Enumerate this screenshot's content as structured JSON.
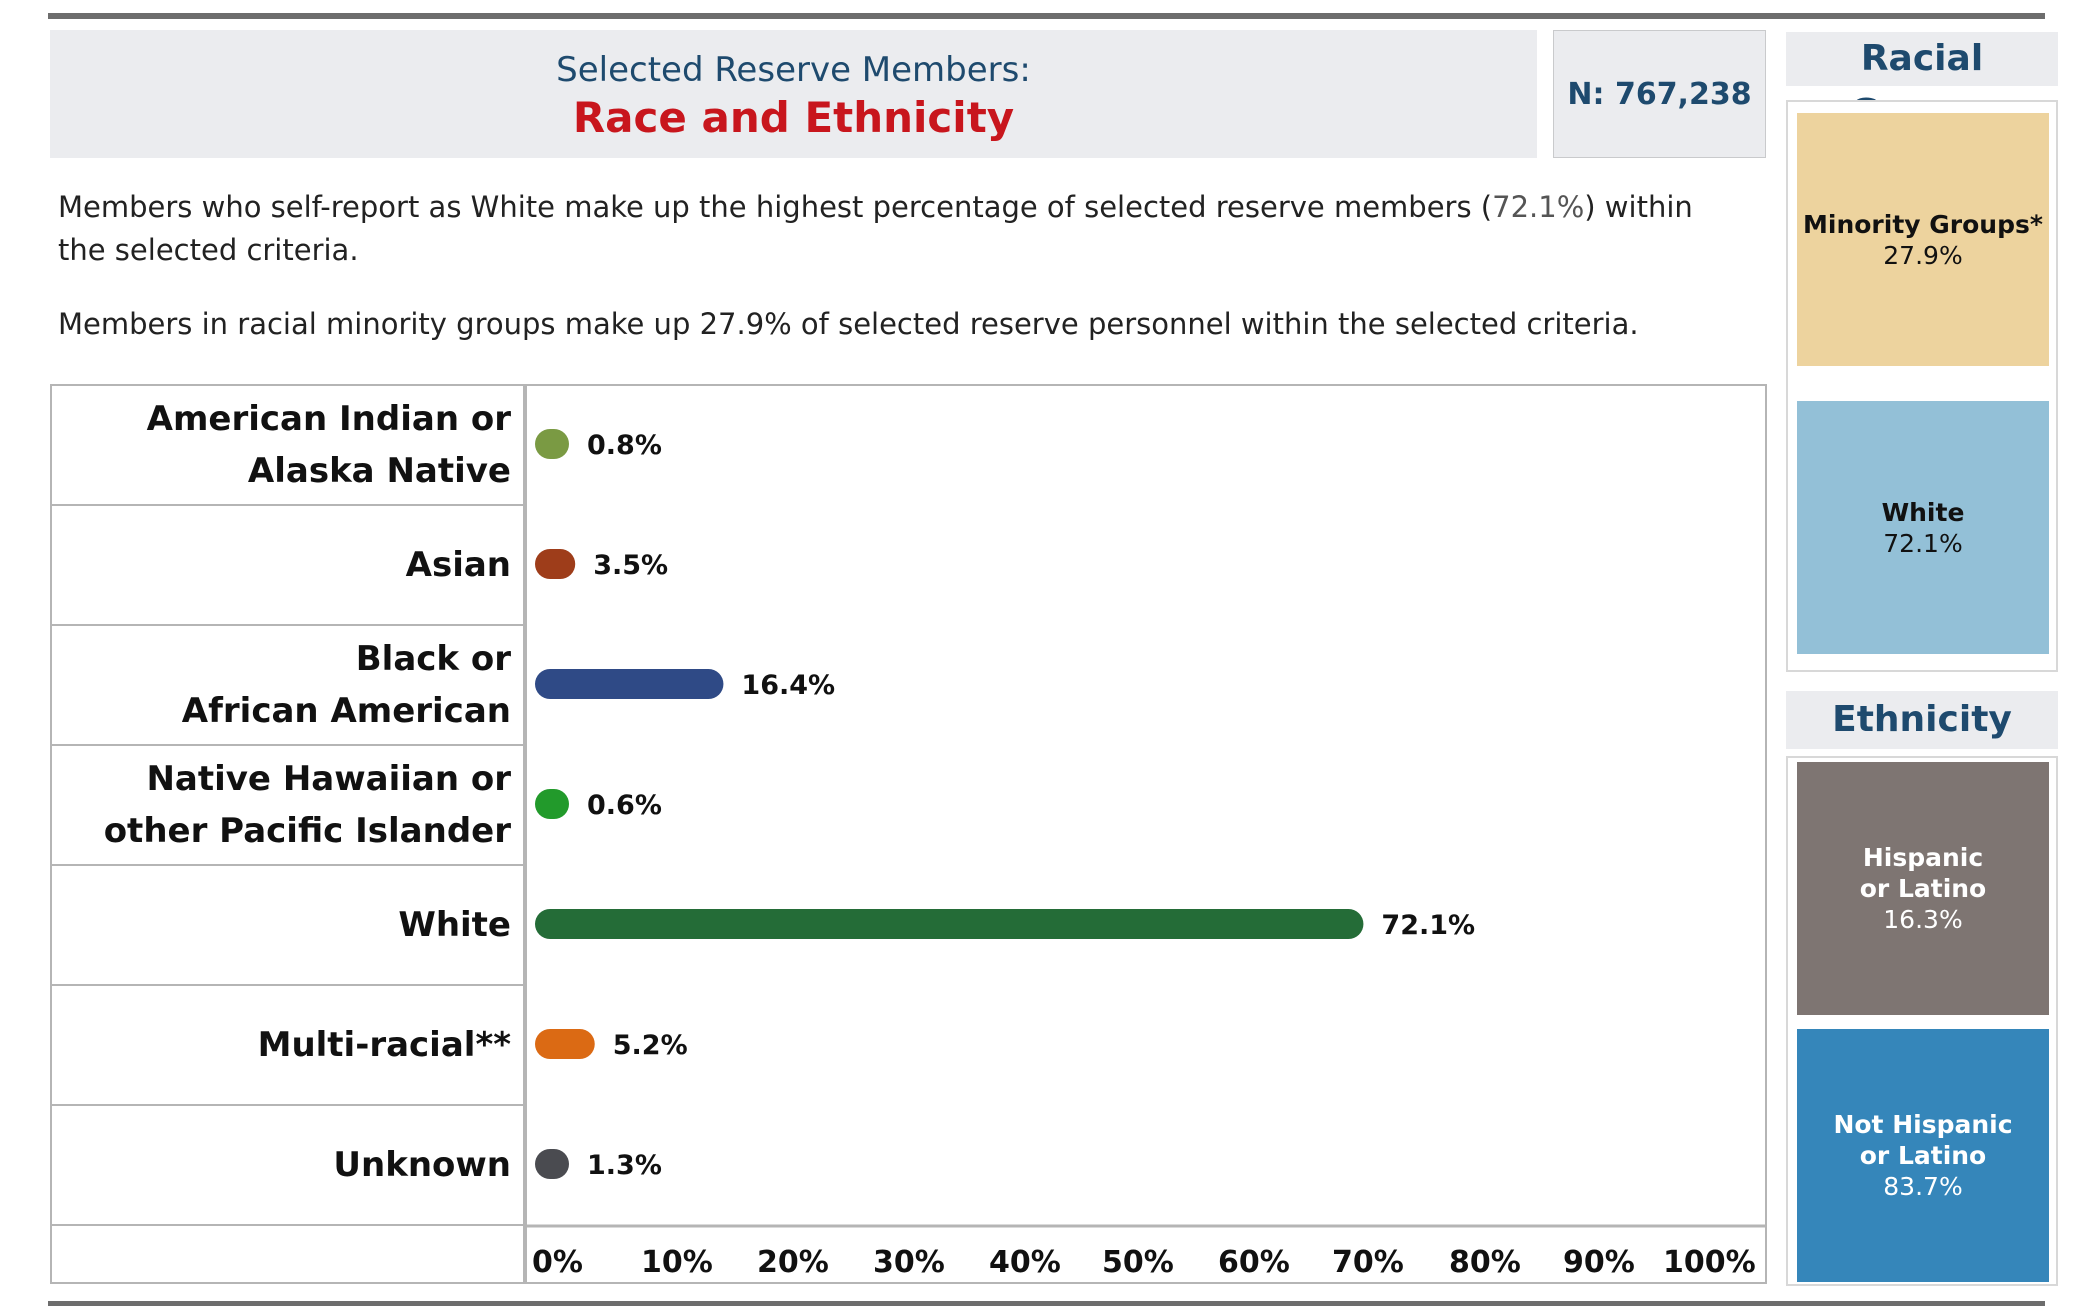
{
  "header": {
    "title_line1": "Selected Reserve Members:",
    "title_line2": "Race and Ethnicity",
    "n_label": "N: 767,238",
    "title_color": "#1e4a6e",
    "subtitle_color": "#c8161d"
  },
  "description": {
    "p1_before": "Members who self-report as White make up the highest percentage of selected reserve members (",
    "p1_highlight": "72.1%",
    "p1_after": ") within the selected criteria.",
    "p2": "Members in racial minority groups make up 27.9% of selected reserve personnel within the selected criteria."
  },
  "chart_data": {
    "type": "bar",
    "orientation": "horizontal",
    "categories": [
      "American Indian or Alaska Native",
      "Asian",
      "Black or African American",
      "Native Hawaiian or other Pacific Islander",
      "White",
      "Multi-racial**",
      "Unknown"
    ],
    "category_lines": [
      [
        "American Indian or",
        "Alaska Native"
      ],
      [
        "Asian"
      ],
      [
        "Black or",
        "African American"
      ],
      [
        "Native Hawaiian or",
        "other Pacific Islander"
      ],
      [
        "White"
      ],
      [
        "Multi-racial**"
      ],
      [
        "Unknown"
      ]
    ],
    "values": [
      0.8,
      3.5,
      16.4,
      0.6,
      72.1,
      5.2,
      1.3
    ],
    "value_labels": [
      "0.8%",
      "3.5%",
      "16.4%",
      "0.6%",
      "72.1%",
      "5.2%",
      "1.3%"
    ],
    "colors": [
      "#7a9a43",
      "#9e3d1a",
      "#2f4a86",
      "#229a2b",
      "#246c37",
      "#db6a14",
      "#4a4b50"
    ],
    "xlim": [
      0,
      100
    ],
    "x_ticks": [
      0,
      10,
      20,
      30,
      40,
      50,
      60,
      70,
      80,
      90,
      100
    ],
    "x_tick_labels": [
      "0%",
      "10%",
      "20%",
      "30%",
      "40%",
      "50%",
      "60%",
      "70%",
      "80%",
      "90%",
      "100%"
    ],
    "grid": false
  },
  "racial_groups": {
    "header": "Racial Groups",
    "tiles": [
      {
        "label": "Minority Groups*",
        "value": "27.9%",
        "color": "#edd39e",
        "text_color": "#111111"
      },
      {
        "label": "White",
        "value": "72.1%",
        "color": "#93c0d7",
        "text_color": "#111111"
      }
    ]
  },
  "ethnicity": {
    "header": "Ethnicity",
    "tiles": [
      {
        "label_lines": [
          "Hispanic",
          "or Latino"
        ],
        "value": "16.3%",
        "color": "#7e7572",
        "text_color": "#ffffff"
      },
      {
        "label_lines": [
          "Not Hispanic",
          "or Latino"
        ],
        "value": "83.7%",
        "color": "#3586ba",
        "text_color": "#ffffff"
      }
    ]
  }
}
